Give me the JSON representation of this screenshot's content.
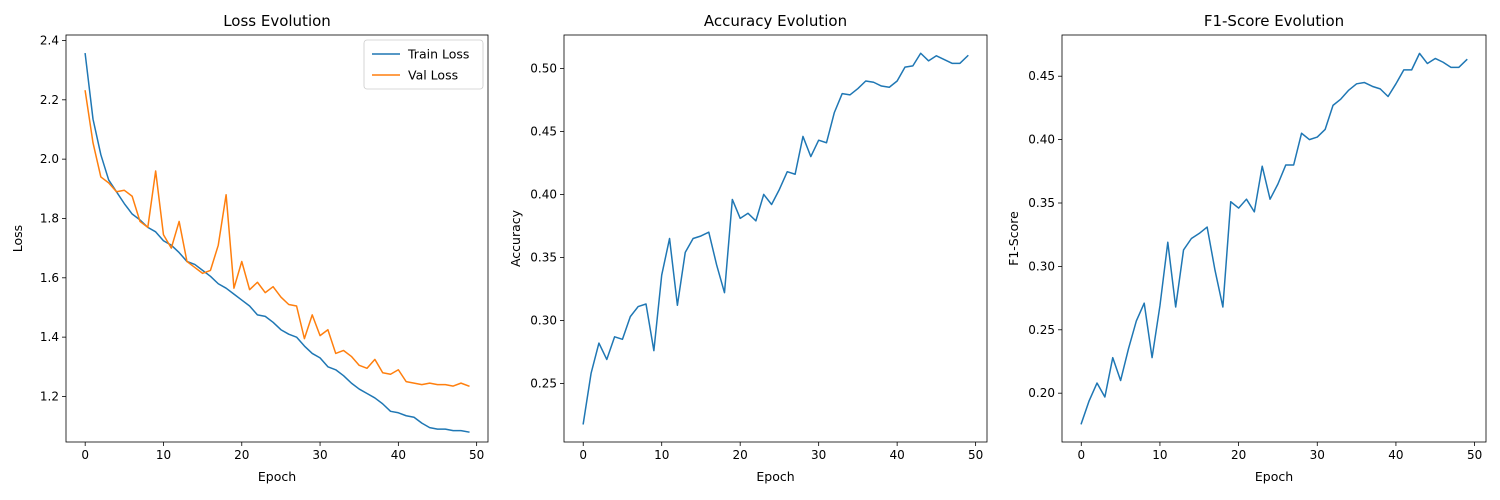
{
  "chart_data": [
    {
      "type": "line",
      "title": "Loss Evolution",
      "xlabel": "Epoch",
      "ylabel": "Loss",
      "xlim": [
        -2.45,
        51.45
      ],
      "ylim": [
        1.0465,
        2.4185
      ],
      "xticks": [
        0,
        10,
        20,
        30,
        40,
        50
      ],
      "yticks": [
        1.2,
        1.4,
        1.6,
        1.8,
        2.0,
        2.2,
        2.4
      ],
      "ytick_decimals": 1,
      "grid": false,
      "legend": "top-right",
      "x": [
        0,
        1,
        2,
        3,
        4,
        5,
        6,
        7,
        8,
        9,
        10,
        11,
        12,
        13,
        14,
        15,
        16,
        17,
        18,
        19,
        20,
        21,
        22,
        23,
        24,
        25,
        26,
        27,
        28,
        29,
        30,
        31,
        32,
        33,
        34,
        35,
        36,
        37,
        38,
        39,
        40,
        41,
        42,
        43,
        44,
        45,
        46,
        47,
        48,
        49
      ],
      "series": [
        {
          "name": "Train Loss",
          "color": "#1f77b4",
          "values": [
            2.355,
            2.135,
            2.015,
            1.93,
            1.89,
            1.85,
            1.815,
            1.795,
            1.77,
            1.755,
            1.725,
            1.71,
            1.685,
            1.655,
            1.645,
            1.625,
            1.605,
            1.58,
            1.565,
            1.545,
            1.525,
            1.505,
            1.475,
            1.47,
            1.45,
            1.425,
            1.41,
            1.4,
            1.37,
            1.345,
            1.33,
            1.3,
            1.29,
            1.27,
            1.245,
            1.225,
            1.21,
            1.195,
            1.175,
            1.15,
            1.145,
            1.135,
            1.13,
            1.11,
            1.095,
            1.09,
            1.09,
            1.085,
            1.085,
            1.08
          ]
        },
        {
          "name": "Val Loss",
          "color": "#ff7f0e",
          "values": [
            2.23,
            2.055,
            1.94,
            1.92,
            1.89,
            1.895,
            1.875,
            1.79,
            1.77,
            1.96,
            1.745,
            1.7,
            1.79,
            1.655,
            1.635,
            1.615,
            1.625,
            1.71,
            1.88,
            1.565,
            1.655,
            1.56,
            1.585,
            1.55,
            1.57,
            1.535,
            1.51,
            1.505,
            1.395,
            1.475,
            1.405,
            1.425,
            1.345,
            1.355,
            1.335,
            1.305,
            1.295,
            1.325,
            1.28,
            1.275,
            1.29,
            1.25,
            1.245,
            1.24,
            1.245,
            1.24,
            1.24,
            1.235,
            1.245,
            1.235
          ]
        }
      ]
    },
    {
      "type": "line",
      "title": "Accuracy Evolution",
      "xlabel": "Epoch",
      "ylabel": "Accuracy",
      "xlim": [
        -2.45,
        51.45
      ],
      "ylim": [
        0.2035,
        0.5265
      ],
      "xticks": [
        0,
        10,
        20,
        30,
        40,
        50
      ],
      "yticks": [
        0.25,
        0.3,
        0.35,
        0.4,
        0.45,
        0.5
      ],
      "ytick_decimals": 2,
      "grid": false,
      "x": [
        0,
        1,
        2,
        3,
        4,
        5,
        6,
        7,
        8,
        9,
        10,
        11,
        12,
        13,
        14,
        15,
        16,
        17,
        18,
        19,
        20,
        21,
        22,
        23,
        24,
        25,
        26,
        27,
        28,
        29,
        30,
        31,
        32,
        33,
        34,
        35,
        36,
        37,
        38,
        39,
        40,
        41,
        42,
        43,
        44,
        45,
        46,
        47,
        48,
        49
      ],
      "series": [
        {
          "color": "#1f77b4",
          "values": [
            0.218,
            0.258,
            0.282,
            0.269,
            0.287,
            0.285,
            0.303,
            0.311,
            0.313,
            0.276,
            0.336,
            0.365,
            0.312,
            0.354,
            0.365,
            0.367,
            0.37,
            0.344,
            0.322,
            0.396,
            0.381,
            0.385,
            0.379,
            0.4,
            0.392,
            0.404,
            0.418,
            0.416,
            0.446,
            0.43,
            0.443,
            0.441,
            0.465,
            0.48,
            0.479,
            0.484,
            0.49,
            0.489,
            0.486,
            0.485,
            0.49,
            0.501,
            0.502,
            0.512,
            0.506,
            0.51,
            0.507,
            0.504,
            0.504,
            0.51
          ]
        }
      ]
    },
    {
      "type": "line",
      "title": "F1-Score Evolution",
      "xlabel": "Epoch",
      "ylabel": "F1-Score",
      "xlim": [
        -2.45,
        51.45
      ],
      "ylim": [
        0.1615,
        0.4825
      ],
      "xticks": [
        0,
        10,
        20,
        30,
        40,
        50
      ],
      "yticks": [
        0.2,
        0.25,
        0.3,
        0.35,
        0.4,
        0.45
      ],
      "ytick_decimals": 2,
      "grid": false,
      "x": [
        0,
        1,
        2,
        3,
        4,
        5,
        6,
        7,
        8,
        9,
        10,
        11,
        12,
        13,
        14,
        15,
        16,
        17,
        18,
        19,
        20,
        21,
        22,
        23,
        24,
        25,
        26,
        27,
        28,
        29,
        30,
        31,
        32,
        33,
        34,
        35,
        36,
        37,
        38,
        39,
        40,
        41,
        42,
        43,
        44,
        45,
        46,
        47,
        48,
        49
      ],
      "series": [
        {
          "color": "#1f77b4",
          "values": [
            0.176,
            0.194,
            0.208,
            0.197,
            0.228,
            0.21,
            0.235,
            0.257,
            0.271,
            0.228,
            0.269,
            0.319,
            0.268,
            0.313,
            0.322,
            0.326,
            0.331,
            0.297,
            0.268,
            0.351,
            0.346,
            0.353,
            0.343,
            0.379,
            0.353,
            0.365,
            0.38,
            0.38,
            0.405,
            0.4,
            0.402,
            0.408,
            0.427,
            0.432,
            0.439,
            0.444,
            0.445,
            0.442,
            0.44,
            0.434,
            0.444,
            0.455,
            0.455,
            0.468,
            0.46,
            0.464,
            0.461,
            0.457,
            0.457,
            0.463
          ]
        }
      ]
    }
  ]
}
